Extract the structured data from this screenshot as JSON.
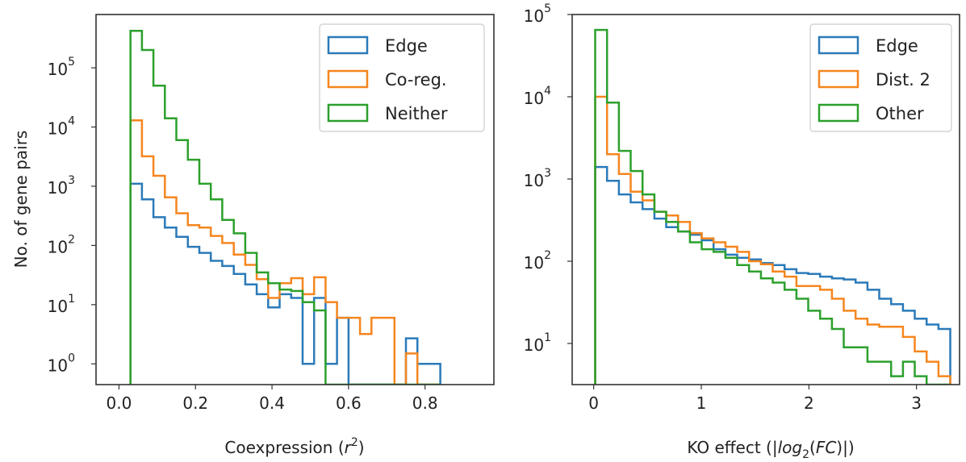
{
  "chart_data": [
    {
      "type": "histogram",
      "xlabel": "Coexpression (r²)",
      "ylabel": "No. of gene pairs",
      "xlim": [
        -0.06,
        0.98
      ],
      "ylim_log10": [
        -0.35,
        5.9
      ],
      "yscale": "log",
      "xticks": [
        "0.0",
        "0.2",
        "0.4",
        "0.6",
        "0.8"
      ],
      "xtick_values": [
        0.0,
        0.2,
        0.4,
        0.6,
        0.8
      ],
      "yticks": [
        0,
        1,
        2,
        3,
        4,
        5
      ],
      "bin_edges": [
        0.03,
        0.06,
        0.09,
        0.12,
        0.15,
        0.18,
        0.21,
        0.24,
        0.27,
        0.3,
        0.33,
        0.36,
        0.39,
        0.42,
        0.45,
        0.48,
        0.51,
        0.54,
        0.57,
        0.6,
        0.63,
        0.66,
        0.69,
        0.72,
        0.75,
        0.78,
        0.81,
        0.84
      ],
      "legend_position": "top-right",
      "grid": false,
      "series": [
        {
          "name": "Edge",
          "color": "#2a7ab9",
          "counts": [
            1100,
            600,
            300,
            200,
            140,
            95,
            75,
            55,
            45,
            33,
            22,
            15,
            9,
            15,
            13,
            1,
            13,
            1,
            6,
            0,
            0,
            0,
            0,
            0,
            2.7,
            1,
            1
          ]
        },
        {
          "name": "Co-reg.",
          "color": "#f5861f",
          "counts": [
            13000,
            3200,
            1500,
            650,
            350,
            220,
            200,
            145,
            110,
            70,
            47,
            27,
            13,
            23,
            28,
            15,
            29,
            11,
            6,
            6,
            3.2,
            6,
            6,
            0,
            1.5,
            0,
            0
          ]
        },
        {
          "name": "Neither",
          "color": "#2ca02c",
          "counts": [
            420000,
            200000,
            50000,
            14000,
            6000,
            2800,
            1100,
            600,
            270,
            160,
            75,
            35,
            23,
            18,
            17,
            11,
            8,
            0,
            0,
            0,
            0,
            0,
            0,
            0,
            0,
            0,
            0
          ]
        }
      ]
    },
    {
      "type": "histogram",
      "xlabel": "KO effect (|log₂(FC)|)",
      "ylabel": "",
      "xlim": [
        -0.2,
        3.4
      ],
      "ylim_log10": [
        0.5,
        5.0
      ],
      "yscale": "log",
      "xticks": [
        "0",
        "1",
        "2",
        "3"
      ],
      "xtick_values": [
        0,
        1,
        2,
        3
      ],
      "yticks": [
        1,
        2,
        3,
        4,
        5
      ],
      "bin_edges": [
        0.014,
        0.124,
        0.234,
        0.344,
        0.454,
        0.564,
        0.674,
        0.784,
        0.894,
        1.004,
        1.114,
        1.224,
        1.334,
        1.444,
        1.554,
        1.664,
        1.774,
        1.884,
        1.994,
        2.104,
        2.214,
        2.324,
        2.434,
        2.544,
        2.654,
        2.764,
        2.874,
        2.984,
        3.094,
        3.204,
        3.314
      ],
      "legend_position": "top-right",
      "grid": false,
      "series": [
        {
          "name": "Edge",
          "color": "#2a7ab9",
          "counts": [
            1400,
            950,
            650,
            520,
            430,
            330,
            260,
            230,
            210,
            180,
            140,
            120,
            110,
            105,
            95,
            90,
            80,
            72,
            70,
            65,
            62,
            60,
            55,
            45,
            35,
            30,
            25,
            20,
            17,
            15
          ]
        },
        {
          "name": "Dist. 2",
          "color": "#f5861f",
          "counts": [
            10000,
            2000,
            1150,
            700,
            550,
            400,
            360,
            300,
            220,
            190,
            170,
            150,
            130,
            100,
            92,
            75,
            65,
            50,
            50,
            45,
            35,
            25,
            20,
            17,
            16,
            16,
            12,
            8,
            6,
            4
          ]
        },
        {
          "name": "Other",
          "color": "#2ca02c",
          "counts": [
            65000,
            8500,
            2200,
            1250,
            650,
            400,
            300,
            230,
            170,
            140,
            130,
            110,
            90,
            75,
            62,
            55,
            45,
            35,
            25,
            20,
            15,
            9,
            9,
            6,
            6,
            4,
            6,
            4,
            3,
            3
          ]
        }
      ]
    }
  ]
}
